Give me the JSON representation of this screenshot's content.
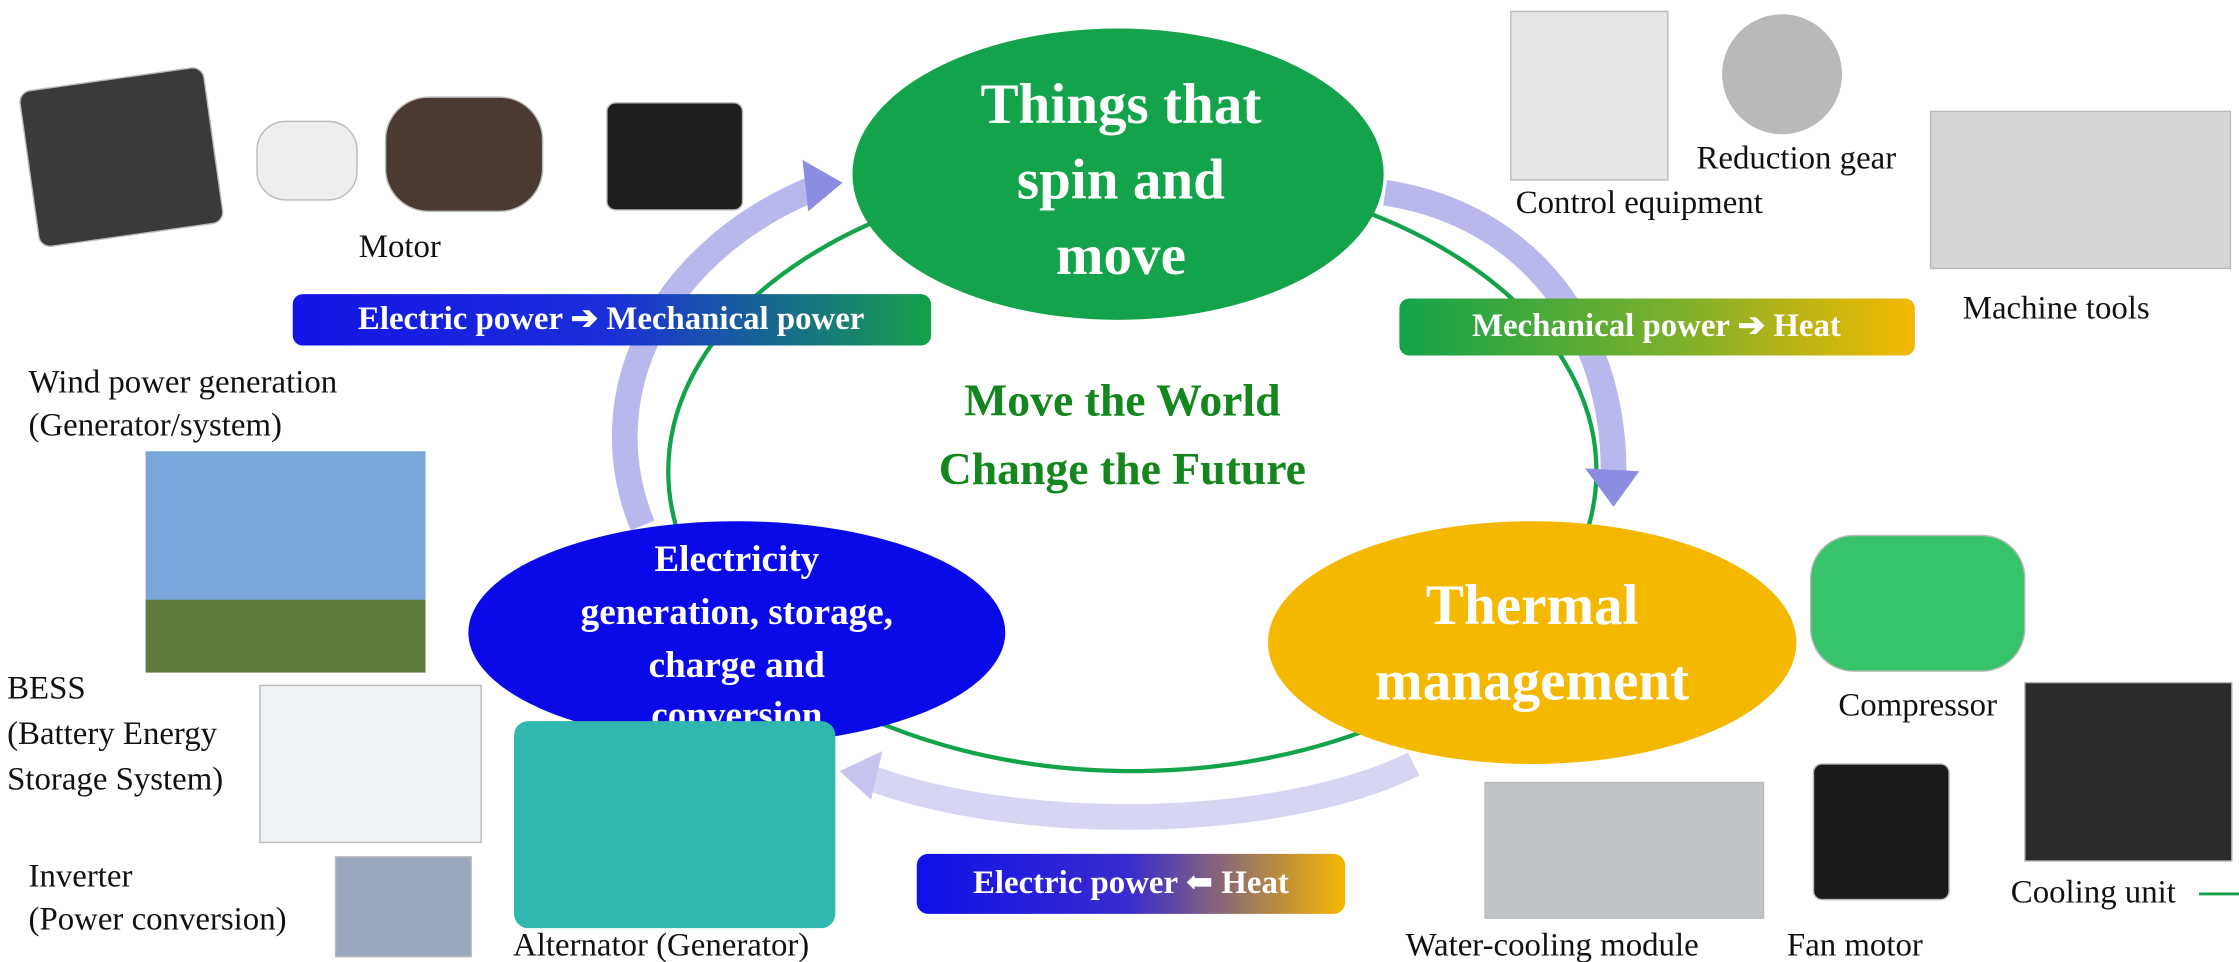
{
  "center": {
    "lines": [
      "Move the World",
      "Change the Future"
    ]
  },
  "nodes": [
    {
      "lines": [
        "Things that",
        "spin and",
        "move"
      ]
    },
    {
      "lines": [
        "Thermal",
        "management"
      ]
    },
    {
      "lines": [
        "Electricity",
        "generation, storage,",
        "charge and",
        "conversion"
      ]
    }
  ],
  "transitions": [
    "Electric power ➔ Mechanical power",
    "Mechanical power ➔ Heat",
    "Electric power ⬅ Heat"
  ],
  "items": {
    "motor": [
      "Motor"
    ],
    "control_equipment": [
      "Control equipment"
    ],
    "reduction_gear": [
      "Reduction gear"
    ],
    "machine_tools": [
      "Machine tools"
    ],
    "wind_power": [
      "Wind power generation",
      "(Generator/system)"
    ],
    "bess": [
      "BESS",
      "(Battery Energy",
      "Storage System)"
    ],
    "inverter": [
      "Inverter",
      "(Power conversion)"
    ],
    "alternator": [
      "Alternator (Generator)"
    ],
    "compressor": [
      "Compressor"
    ],
    "water_cooling": [
      "Water-cooling module"
    ],
    "fan_motor": [
      "Fan motor"
    ],
    "cooling_unit": [
      "Cooling unit"
    ]
  }
}
